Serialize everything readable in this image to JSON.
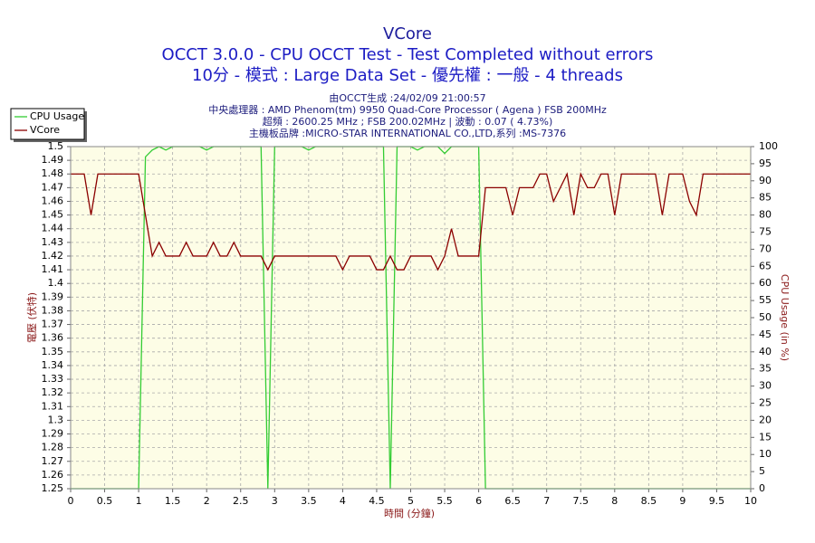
{
  "chart_data": {
    "type": "line",
    "title": "VCore",
    "subtitle": [
      "OCCT 3.0.0 - CPU OCCT Test - Test Completed without errors",
      "10分 - 模式 : Large Data Set - 優先權 : 一般 - 4 threads"
    ],
    "info": [
      "由OCCT生成 :24/02/09 21:00:57",
      "中央處理器 : AMD Phenom(tm) 9950 Quad-Core Processor ( Agena ) FSB 200MHz",
      "超頻 : 2600.25 MHz ; FSB 200.02MHz | 波動 : 0.07 ( 4.73%)",
      "主機板品牌 :MICRO-STAR INTERNATIONAL CO.,LTD,系列 :MS-7376"
    ],
    "x_label": "時間 (分鐘)",
    "y_label": "電壓 (伏特)",
    "y2_label": "CPU Usage (in %)",
    "legend": "top-left",
    "grid": true,
    "xlim": [
      0,
      10
    ],
    "xticks": [
      0,
      0.5,
      1,
      1.5,
      2,
      2.5,
      3,
      3.5,
      4,
      4.5,
      5,
      5.5,
      6,
      6.5,
      7,
      7.5,
      8,
      8.5,
      9,
      9.5,
      10
    ],
    "ylim": [
      1.25,
      1.5
    ],
    "yticks": [
      1.25,
      1.26,
      1.27,
      1.28,
      1.29,
      1.3,
      1.31,
      1.32,
      1.33,
      1.34,
      1.35,
      1.36,
      1.37,
      1.38,
      1.39,
      1.4,
      1.41,
      1.42,
      1.43,
      1.44,
      1.45,
      1.46,
      1.47,
      1.48,
      1.49,
      1.5
    ],
    "y2lim": [
      0,
      100
    ],
    "y2ticks": [
      0,
      5,
      10,
      15,
      20,
      25,
      30,
      35,
      40,
      45,
      50,
      55,
      60,
      65,
      70,
      75,
      80,
      85,
      90,
      95,
      100
    ],
    "x": [
      0,
      0.1,
      0.2,
      0.3,
      0.4,
      0.5,
      0.6,
      0.7,
      0.8,
      0.9,
      1,
      1.1,
      1.2,
      1.3,
      1.4,
      1.5,
      1.6,
      1.7,
      1.8,
      1.9,
      2,
      2.1,
      2.2,
      2.3,
      2.4,
      2.5,
      2.6,
      2.7,
      2.8,
      2.9,
      3,
      3.1,
      3.2,
      3.3,
      3.4,
      3.5,
      3.6,
      3.7,
      3.8,
      3.9,
      4,
      4.1,
      4.2,
      4.3,
      4.4,
      4.5,
      4.6,
      4.7,
      4.8,
      4.9,
      5,
      5.1,
      5.2,
      5.3,
      5.4,
      5.5,
      5.6,
      5.7,
      5.8,
      5.9,
      6,
      6.1,
      6.2,
      6.3,
      6.4,
      6.5,
      6.6,
      6.7,
      6.8,
      6.9,
      7,
      7.1,
      7.2,
      7.3,
      7.4,
      7.5,
      7.6,
      7.7,
      7.8,
      7.9,
      8,
      8.1,
      8.2,
      8.3,
      8.4,
      8.5,
      8.6,
      8.7,
      8.8,
      8.9,
      9,
      9.1,
      9.2,
      9.3,
      9.4,
      9.5,
      9.6,
      9.7,
      9.8,
      9.9,
      10
    ],
    "series": [
      {
        "name": "CPU Usage",
        "color": "#33cc33",
        "axis": "y2",
        "values": [
          0,
          0,
          0,
          0,
          0,
          0,
          0,
          0,
          0,
          0,
          0,
          97,
          99,
          100,
          99,
          100,
          100,
          100,
          100,
          100,
          99,
          100,
          100,
          100,
          100,
          100,
          100,
          100,
          100,
          0,
          100,
          100,
          100,
          100,
          100,
          99,
          100,
          100,
          100,
          100,
          100,
          100,
          100,
          100,
          100,
          100,
          100,
          0,
          100,
          100,
          100,
          99,
          100,
          100,
          100,
          98,
          100,
          100,
          100,
          100,
          100,
          0,
          0,
          0,
          0,
          0,
          0,
          0,
          0,
          0,
          0,
          0,
          0,
          0,
          0,
          0,
          0,
          0,
          0,
          0,
          0,
          0,
          0,
          0,
          0,
          0,
          0,
          0,
          0,
          0,
          0,
          0,
          0,
          0,
          0,
          0,
          0,
          0,
          0,
          0,
          0
        ]
      },
      {
        "name": "VCore",
        "color": "#8b0000",
        "values": [
          1.48,
          1.48,
          1.48,
          1.45,
          1.48,
          1.48,
          1.48,
          1.48,
          1.48,
          1.48,
          1.48,
          1.45,
          1.42,
          1.43,
          1.42,
          1.42,
          1.42,
          1.43,
          1.42,
          1.42,
          1.42,
          1.43,
          1.42,
          1.42,
          1.43,
          1.42,
          1.42,
          1.42,
          1.42,
          1.41,
          1.42,
          1.42,
          1.42,
          1.42,
          1.42,
          1.42,
          1.42,
          1.42,
          1.42,
          1.42,
          1.41,
          1.42,
          1.42,
          1.42,
          1.42,
          1.41,
          1.41,
          1.42,
          1.41,
          1.41,
          1.42,
          1.42,
          1.42,
          1.42,
          1.41,
          1.42,
          1.44,
          1.42,
          1.42,
          1.42,
          1.42,
          1.47,
          1.47,
          1.47,
          1.47,
          1.45,
          1.47,
          1.47,
          1.47,
          1.48,
          1.48,
          1.46,
          1.47,
          1.48,
          1.45,
          1.48,
          1.47,
          1.47,
          1.48,
          1.48,
          1.45,
          1.48,
          1.48,
          1.48,
          1.48,
          1.48,
          1.48,
          1.45,
          1.48,
          1.48,
          1.48,
          1.46,
          1.45,
          1.48,
          1.48,
          1.48,
          1.48,
          1.48,
          1.48,
          1.48,
          1.48
        ]
      }
    ]
  }
}
